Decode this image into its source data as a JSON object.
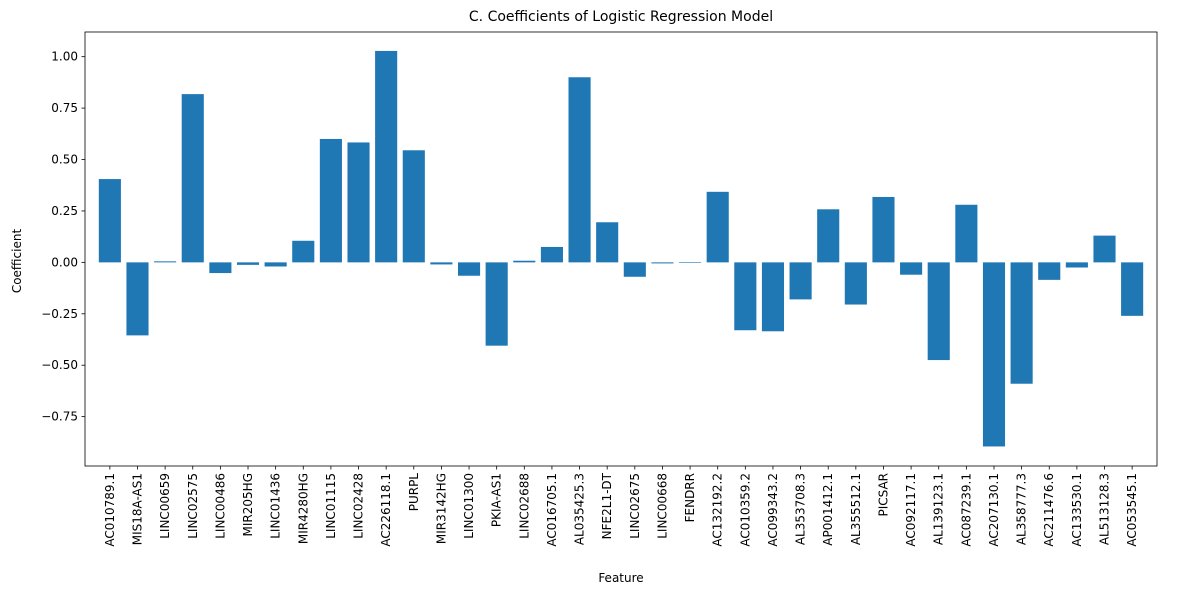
{
  "chart_data": {
    "type": "bar",
    "title": "C. Coefficients of Logistic Regression Model",
    "xlabel": "Feature",
    "ylabel": "Coefficient",
    "ylim": [
      -0.99,
      1.12
    ],
    "yticks": [
      -0.75,
      -0.5,
      -0.25,
      0.0,
      0.25,
      0.5,
      0.75,
      1.0
    ],
    "ytick_labels": [
      "−0.75",
      "−0.50",
      "−0.25",
      "0.00",
      "0.25",
      "0.50",
      "0.75",
      "1.00"
    ],
    "grid": false,
    "bar_color": "#1f77b4",
    "categories": [
      "AC010789.1",
      "MIS18A-AS1",
      "LINC00659",
      "LINC02575",
      "LINC00486",
      "MIR205HG",
      "LINC01436",
      "MIR4280HG",
      "LINC01115",
      "LINC02428",
      "AC226118.1",
      "PURPL",
      "MIR3142HG",
      "LINC01300",
      "PKIA-AS1",
      "LINC02688",
      "AC016705.1",
      "AL035425.3",
      "NFE2L1-DT",
      "LINC02675",
      "LINC00668",
      "FENDRR",
      "AC132192.2",
      "AC010359.2",
      "AC099343.2",
      "AL353708.3",
      "AP001412.1",
      "AL355512.1",
      "PICSAR",
      "AC092117.1",
      "AL139123.1",
      "AC087239.1",
      "AC207130.1",
      "AL358777.3",
      "AC211476.6",
      "AC133530.1",
      "AL513128.3",
      "AC053545.1"
    ],
    "values": [
      0.405,
      -0.355,
      0.005,
      0.818,
      -0.052,
      -0.012,
      -0.02,
      0.105,
      0.6,
      0.583,
      1.028,
      0.545,
      -0.01,
      -0.065,
      -0.405,
      0.008,
      0.075,
      0.9,
      0.195,
      -0.07,
      -0.005,
      0.0,
      0.343,
      -0.33,
      -0.335,
      -0.18,
      0.258,
      -0.205,
      0.318,
      -0.06,
      -0.475,
      0.28,
      -0.895,
      -0.59,
      -0.085,
      -0.025,
      0.13,
      -0.26
    ]
  }
}
